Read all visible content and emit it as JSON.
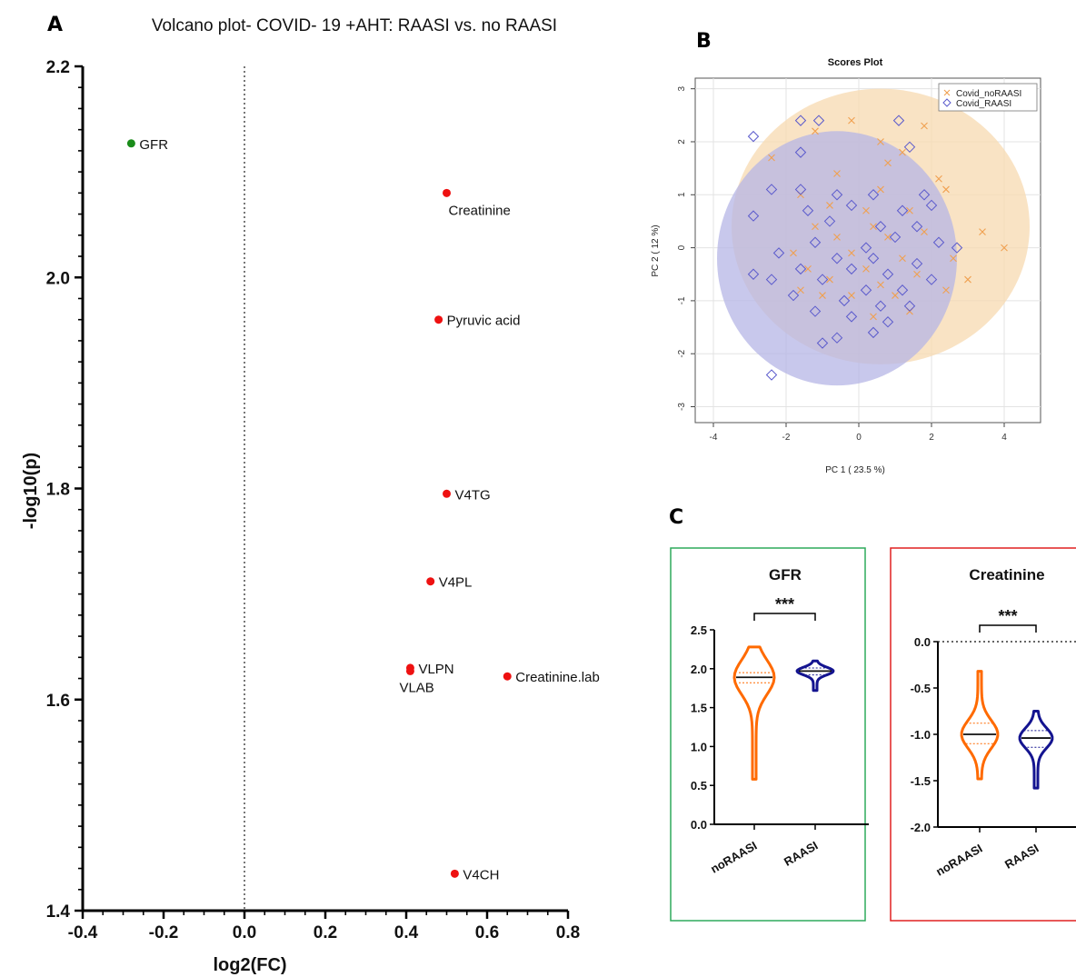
{
  "panels": {
    "a": "A",
    "b": "B",
    "c": "C"
  },
  "chart_data": [
    {
      "panel": "A",
      "type": "scatter",
      "title": "Volcano plot- COVID- 19 +AHT: RAASI vs. no RAASI",
      "xlabel": "log2(FC)",
      "ylabel": "-log10(p)",
      "xlim": [
        -0.4,
        0.8
      ],
      "ylim": [
        1.4,
        2.2
      ],
      "xticks": [
        "-0.4",
        "-0.2",
        "0.0",
        "0.2",
        "0.4",
        "0.6",
        "0.8"
      ],
      "yticks": [
        "1.4",
        "1.6",
        "1.8",
        "2.0",
        "2.2"
      ],
      "vline_x": 0.0,
      "colors": {
        "down": "#1a8c1a",
        "up": "#ee1111"
      },
      "points": [
        {
          "name": "GFR",
          "x": -0.28,
          "y": 2.127,
          "dir": "down"
        },
        {
          "name": "Creatinine",
          "x": 0.5,
          "y": 2.08,
          "dir": "up"
        },
        {
          "name": "Pyruvic acid",
          "x": 0.48,
          "y": 1.96,
          "dir": "up"
        },
        {
          "name": "V4TG",
          "x": 0.5,
          "y": 1.795,
          "dir": "up"
        },
        {
          "name": "V4PL",
          "x": 0.46,
          "y": 1.712,
          "dir": "up"
        },
        {
          "name": "VLPN",
          "x": 0.41,
          "y": 1.63,
          "dir": "up"
        },
        {
          "name": "VLAB",
          "x": 0.41,
          "y": 1.627,
          "dir": "up"
        },
        {
          "name": "Creatinine.lab",
          "x": 0.65,
          "y": 1.622,
          "dir": "up"
        },
        {
          "name": "V4CH",
          "x": 0.52,
          "y": 1.435,
          "dir": "up"
        }
      ]
    },
    {
      "panel": "B",
      "type": "scatter",
      "title": "Scores Plot",
      "xlabel": "PC 1 ( 23.5 %)",
      "ylabel": "PC 2 ( 12 %)",
      "xlim": [
        -4.5,
        5.0
      ],
      "ylim": [
        -3.3,
        3.2
      ],
      "xticks": [
        -4,
        -2,
        0,
        2,
        4
      ],
      "yticks": [
        -3,
        -2,
        -1,
        0,
        1,
        2,
        3
      ],
      "grid": true,
      "legend": "top-right",
      "series": [
        {
          "name": "Covid_noRAASI",
          "marker": "x",
          "color": "#f0a050",
          "ellipse": {
            "cx": 0.6,
            "cy": 0.4,
            "rx": 4.1,
            "ry": 2.6,
            "fill": "#f7d9b0"
          },
          "points": [
            [
              -0.2,
              2.4
            ],
            [
              1.8,
              2.3
            ],
            [
              -1.2,
              2.2
            ],
            [
              0.6,
              2.0
            ],
            [
              1.2,
              1.8
            ],
            [
              -2.4,
              1.7
            ],
            [
              0.8,
              1.6
            ],
            [
              -0.6,
              1.4
            ],
            [
              2.2,
              1.3
            ],
            [
              -1.6,
              1.0
            ],
            [
              0.6,
              1.1
            ],
            [
              2.4,
              1.1
            ],
            [
              -0.8,
              0.8
            ],
            [
              0.2,
              0.7
            ],
            [
              1.4,
              0.7
            ],
            [
              -1.2,
              0.4
            ],
            [
              0.4,
              0.4
            ],
            [
              1.8,
              0.3
            ],
            [
              3.4,
              0.3
            ],
            [
              4.0,
              0.0
            ],
            [
              -0.6,
              0.2
            ],
            [
              0.8,
              0.2
            ],
            [
              -1.8,
              -0.1
            ],
            [
              -0.2,
              -0.1
            ],
            [
              1.2,
              -0.2
            ],
            [
              2.6,
              -0.2
            ],
            [
              -1.4,
              -0.4
            ],
            [
              0.2,
              -0.4
            ],
            [
              1.6,
              -0.5
            ],
            [
              -0.8,
              -0.6
            ],
            [
              0.6,
              -0.7
            ],
            [
              3.0,
              -0.6
            ],
            [
              -1.6,
              -0.8
            ],
            [
              -0.2,
              -0.9
            ],
            [
              1.0,
              -0.9
            ],
            [
              2.4,
              -0.8
            ],
            [
              -1.0,
              -0.9
            ],
            [
              0.4,
              -1.3
            ],
            [
              1.4,
              -1.2
            ]
          ]
        },
        {
          "name": "Covid_RAASI",
          "marker": "diamond",
          "color": "#5a5acc",
          "ellipse": {
            "cx": -0.6,
            "cy": -0.2,
            "rx": 3.3,
            "ry": 2.4,
            "fill": "#b5b5e6"
          },
          "points": [
            [
              -2.9,
              2.1
            ],
            [
              -1.6,
              2.4
            ],
            [
              -1.1,
              2.4
            ],
            [
              1.1,
              2.4
            ],
            [
              -1.6,
              1.8
            ],
            [
              1.4,
              1.9
            ],
            [
              -2.4,
              1.1
            ],
            [
              -1.6,
              1.1
            ],
            [
              -0.6,
              1.0
            ],
            [
              0.4,
              1.0
            ],
            [
              1.8,
              1.0
            ],
            [
              -1.4,
              0.7
            ],
            [
              -0.2,
              0.8
            ],
            [
              1.2,
              0.7
            ],
            [
              2.0,
              0.8
            ],
            [
              -2.9,
              0.6
            ],
            [
              -0.8,
              0.5
            ],
            [
              0.6,
              0.4
            ],
            [
              1.6,
              0.4
            ],
            [
              -1.2,
              0.1
            ],
            [
              0.2,
              0.0
            ],
            [
              1.0,
              0.2
            ],
            [
              2.2,
              0.1
            ],
            [
              2.7,
              0.0
            ],
            [
              -2.2,
              -0.1
            ],
            [
              -0.6,
              -0.2
            ],
            [
              0.4,
              -0.2
            ],
            [
              1.6,
              -0.3
            ],
            [
              -1.6,
              -0.4
            ],
            [
              -0.2,
              -0.4
            ],
            [
              0.8,
              -0.5
            ],
            [
              2.0,
              -0.6
            ],
            [
              -2.4,
              -0.6
            ],
            [
              -1.0,
              -0.6
            ],
            [
              0.2,
              -0.8
            ],
            [
              1.2,
              -0.8
            ],
            [
              -1.8,
              -0.9
            ],
            [
              -0.4,
              -1.0
            ],
            [
              0.6,
              -1.1
            ],
            [
              1.4,
              -1.1
            ],
            [
              -1.2,
              -1.2
            ],
            [
              -0.2,
              -1.3
            ],
            [
              0.8,
              -1.4
            ],
            [
              -2.9,
              -0.5
            ],
            [
              -0.6,
              -1.7
            ],
            [
              -1.0,
              -1.8
            ],
            [
              0.4,
              -1.6
            ],
            [
              -2.4,
              -2.4
            ]
          ]
        }
      ]
    },
    {
      "panel": "C",
      "type": "violin",
      "title": "GFR",
      "categories": [
        "noRAASI",
        "RAASI"
      ],
      "ylim": [
        0.0,
        2.5
      ],
      "yticks": [
        "0.0",
        "0.5",
        "1.0",
        "1.5",
        "2.0",
        "2.5"
      ],
      "significance": "***",
      "border_color": "#2eaa5c",
      "series": [
        {
          "name": "noRAASI",
          "color": "#ff6a00",
          "min": 0.58,
          "max": 2.28,
          "median": 1.89,
          "q1": 1.82,
          "q3": 1.95
        },
        {
          "name": "RAASI",
          "color": "#141490",
          "min": 1.72,
          "max": 2.1,
          "median": 1.97,
          "q1": 1.92,
          "q3": 2.01
        }
      ]
    },
    {
      "panel": "C",
      "type": "violin",
      "title": "Creatinine",
      "categories": [
        "noRAASI",
        "RAASI"
      ],
      "ylim": [
        -2.0,
        0.0
      ],
      "yticks": [
        "0.0",
        "-0.5",
        "-1.0",
        "-1.5",
        "-2.0"
      ],
      "significance": "***",
      "border_color": "#e02020",
      "zero_line": true,
      "series": [
        {
          "name": "noRAASI",
          "color": "#ff6a00",
          "min": -1.48,
          "max": -0.32,
          "median": -1.0,
          "q1": -1.1,
          "q3": -0.88
        },
        {
          "name": "RAASI",
          "color": "#141490",
          "min": -1.58,
          "max": -0.75,
          "median": -1.04,
          "q1": -1.14,
          "q3": -0.96
        }
      ]
    }
  ]
}
